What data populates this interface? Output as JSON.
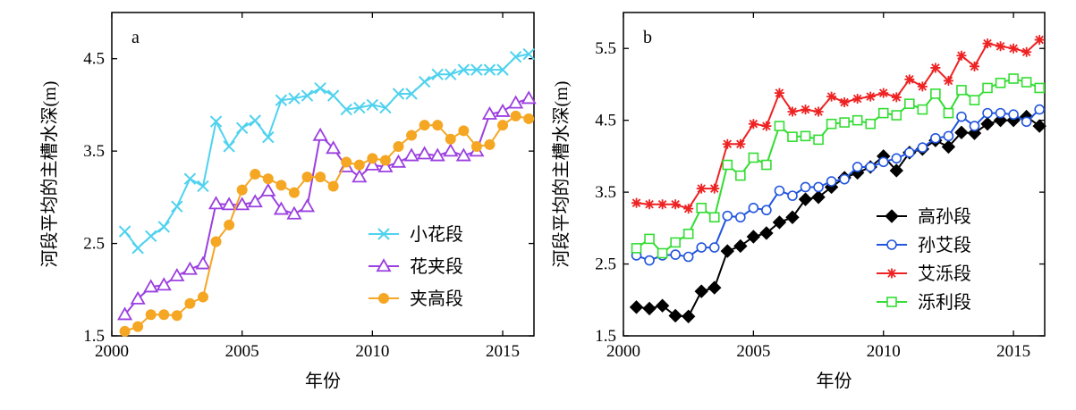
{
  "chart_data": [
    {
      "type": "line",
      "panel_label": "a",
      "xlabel": "年份",
      "ylabel": "河段平均的主槽水深(m)",
      "xlim": [
        2000,
        2016.2
      ],
      "ylim": [
        1.5,
        5.0
      ],
      "xticks": [
        2000,
        2005,
        2010,
        2015
      ],
      "yticks": [
        1.5,
        2.5,
        3.5,
        4.5
      ],
      "xtick_labels": [
        "2000",
        "2005",
        "2010",
        "2015"
      ],
      "ytick_labels": [
        "1.5",
        "2.5",
        "3.5",
        "4.5"
      ],
      "legend_position": "bottom-right",
      "grid": false,
      "series": [
        {
          "name": "小花段",
          "color": "#4fd2ee",
          "marker": "x",
          "x": [
            2000.5,
            2001.0,
            2001.5,
            2002.0,
            2002.5,
            2003.0,
            2003.5,
            2004.0,
            2004.5,
            2005.0,
            2005.5,
            2006.0,
            2006.5,
            2007.0,
            2007.5,
            2008.0,
            2008.5,
            2009.0,
            2009.5,
            2010.0,
            2010.5,
            2011.0,
            2011.5,
            2012.0,
            2012.5,
            2013.0,
            2013.5,
            2014.0,
            2014.5,
            2015.0,
            2015.5,
            2016.0
          ],
          "y": [
            2.63,
            2.45,
            2.58,
            2.68,
            2.9,
            3.2,
            3.12,
            3.82,
            3.55,
            3.75,
            3.83,
            3.65,
            4.05,
            4.07,
            4.1,
            4.18,
            4.1,
            3.95,
            3.97,
            4.0,
            3.97,
            4.12,
            4.12,
            4.25,
            4.33,
            4.33,
            4.38,
            4.38,
            4.38,
            4.38,
            4.52,
            4.55
          ]
        },
        {
          "name": "花夹段",
          "color": "#9b3fe0",
          "marker": "triangle",
          "x": [
            2000.5,
            2001.0,
            2001.5,
            2002.0,
            2002.5,
            2003.0,
            2003.5,
            2004.0,
            2004.5,
            2005.0,
            2005.5,
            2006.0,
            2006.5,
            2007.0,
            2007.5,
            2008.0,
            2008.5,
            2009.0,
            2009.5,
            2010.0,
            2010.5,
            2011.0,
            2011.5,
            2012.0,
            2012.5,
            2013.0,
            2013.5,
            2014.0,
            2014.5,
            2015.0,
            2015.5,
            2016.0
          ],
          "y": [
            1.73,
            1.9,
            2.03,
            2.05,
            2.15,
            2.22,
            2.28,
            2.93,
            2.92,
            2.92,
            2.95,
            3.07,
            2.87,
            2.82,
            2.9,
            3.67,
            3.53,
            3.33,
            3.22,
            3.35,
            3.33,
            3.38,
            3.45,
            3.47,
            3.45,
            3.5,
            3.45,
            3.5,
            3.9,
            3.93,
            4.02,
            4.07
          ]
        },
        {
          "name": "夹高段",
          "color": "#f5a623",
          "marker": "circle",
          "x": [
            2000.5,
            2001.0,
            2001.5,
            2002.0,
            2002.5,
            2003.0,
            2003.5,
            2004.0,
            2004.5,
            2005.0,
            2005.5,
            2006.0,
            2006.5,
            2007.0,
            2007.5,
            2008.0,
            2008.5,
            2009.0,
            2009.5,
            2010.0,
            2010.5,
            2011.0,
            2011.5,
            2012.0,
            2012.5,
            2013.0,
            2013.5,
            2014.0,
            2014.5,
            2015.0,
            2015.5,
            2016.0
          ],
          "y": [
            1.55,
            1.6,
            1.73,
            1.73,
            1.72,
            1.85,
            1.92,
            2.52,
            2.7,
            3.08,
            3.25,
            3.2,
            3.13,
            3.05,
            3.22,
            3.22,
            3.12,
            3.38,
            3.35,
            3.42,
            3.4,
            3.55,
            3.67,
            3.78,
            3.78,
            3.63,
            3.72,
            3.55,
            3.57,
            3.78,
            3.88,
            3.85
          ]
        }
      ]
    },
    {
      "type": "line",
      "panel_label": "b",
      "xlabel": "年份",
      "ylabel": "河段平均的主槽水深(m)",
      "xlim": [
        2000,
        2016.2
      ],
      "ylim": [
        1.5,
        6.0
      ],
      "xticks": [
        2000,
        2005,
        2010,
        2015
      ],
      "yticks": [
        1.5,
        2.5,
        3.5,
        4.5,
        5.5
      ],
      "xtick_labels": [
        "2000",
        "2005",
        "2010",
        "2015"
      ],
      "ytick_labels": [
        "1.5",
        "2.5",
        "3.5",
        "4.5",
        "5.5"
      ],
      "legend_position": "bottom-right",
      "grid": false,
      "series": [
        {
          "name": "高孙段",
          "color": "#000000",
          "marker": "diamond",
          "x": [
            2000.5,
            2001.0,
            2001.5,
            2002.0,
            2002.5,
            2003.0,
            2003.5,
            2004.0,
            2004.5,
            2005.0,
            2005.5,
            2006.0,
            2006.5,
            2007.0,
            2007.5,
            2008.0,
            2008.5,
            2009.0,
            2009.5,
            2010.0,
            2010.5,
            2011.0,
            2011.5,
            2012.0,
            2012.5,
            2013.0,
            2013.5,
            2014.0,
            2014.5,
            2015.0,
            2015.5,
            2016.0
          ],
          "y": [
            1.9,
            1.88,
            1.92,
            1.78,
            1.77,
            2.12,
            2.17,
            2.68,
            2.75,
            2.88,
            2.93,
            3.08,
            3.15,
            3.4,
            3.43,
            3.57,
            3.7,
            3.77,
            3.85,
            4.0,
            3.8,
            4.05,
            4.1,
            4.22,
            4.13,
            4.33,
            4.32,
            4.45,
            4.5,
            4.5,
            4.55,
            4.42
          ]
        },
        {
          "name": "孙艾段",
          "color": "#2255dd",
          "marker": "circle",
          "x": [
            2000.5,
            2001.0,
            2001.5,
            2002.0,
            2002.5,
            2003.0,
            2003.5,
            2004.0,
            2004.5,
            2005.0,
            2005.5,
            2006.0,
            2006.5,
            2007.0,
            2007.5,
            2008.0,
            2008.5,
            2009.0,
            2009.5,
            2010.0,
            2010.5,
            2011.0,
            2011.5,
            2012.0,
            2012.5,
            2013.0,
            2013.5,
            2014.0,
            2014.5,
            2015.0,
            2015.5,
            2016.0
          ],
          "y": [
            2.62,
            2.55,
            2.62,
            2.63,
            2.6,
            2.73,
            2.73,
            3.17,
            3.15,
            3.28,
            3.25,
            3.52,
            3.45,
            3.57,
            3.57,
            3.65,
            3.68,
            3.85,
            3.85,
            3.92,
            3.97,
            4.05,
            4.12,
            4.25,
            4.28,
            4.55,
            4.42,
            4.6,
            4.6,
            4.58,
            4.48,
            4.65
          ]
        },
        {
          "name": "艾泺段",
          "color": "#ee2222",
          "marker": "asterisk",
          "x": [
            2000.5,
            2001.0,
            2001.5,
            2002.0,
            2002.5,
            2003.0,
            2003.5,
            2004.0,
            2004.5,
            2005.0,
            2005.5,
            2006.0,
            2006.5,
            2007.0,
            2007.5,
            2008.0,
            2008.5,
            2009.0,
            2009.5,
            2010.0,
            2010.5,
            2011.0,
            2011.5,
            2012.0,
            2012.5,
            2013.0,
            2013.5,
            2014.0,
            2014.5,
            2015.0,
            2015.5,
            2016.0
          ],
          "y": [
            3.35,
            3.33,
            3.33,
            3.33,
            3.27,
            3.55,
            3.55,
            4.17,
            4.17,
            4.45,
            4.42,
            4.88,
            4.62,
            4.65,
            4.62,
            4.83,
            4.75,
            4.8,
            4.83,
            4.88,
            4.82,
            5.07,
            4.97,
            5.23,
            5.05,
            5.4,
            5.25,
            5.57,
            5.53,
            5.5,
            5.45,
            5.62
          ]
        },
        {
          "name": "泺利段",
          "color": "#33dd33",
          "marker": "square",
          "x": [
            2000.5,
            2001.0,
            2001.5,
            2002.0,
            2002.5,
            2003.0,
            2003.5,
            2004.0,
            2004.5,
            2005.0,
            2005.5,
            2006.0,
            2006.5,
            2007.0,
            2007.5,
            2008.0,
            2008.5,
            2009.0,
            2009.5,
            2010.0,
            2010.5,
            2011.0,
            2011.5,
            2012.0,
            2012.5,
            2013.0,
            2013.5,
            2014.0,
            2014.5,
            2015.0,
            2015.5,
            2016.0
          ],
          "y": [
            2.72,
            2.85,
            2.65,
            2.8,
            2.92,
            3.28,
            3.15,
            3.88,
            3.73,
            3.98,
            3.88,
            4.42,
            4.27,
            4.28,
            4.23,
            4.45,
            4.47,
            4.5,
            4.45,
            4.6,
            4.57,
            4.73,
            4.65,
            4.87,
            4.6,
            4.92,
            4.78,
            4.95,
            5.02,
            5.08,
            5.03,
            4.95
          ]
        }
      ]
    }
  ]
}
